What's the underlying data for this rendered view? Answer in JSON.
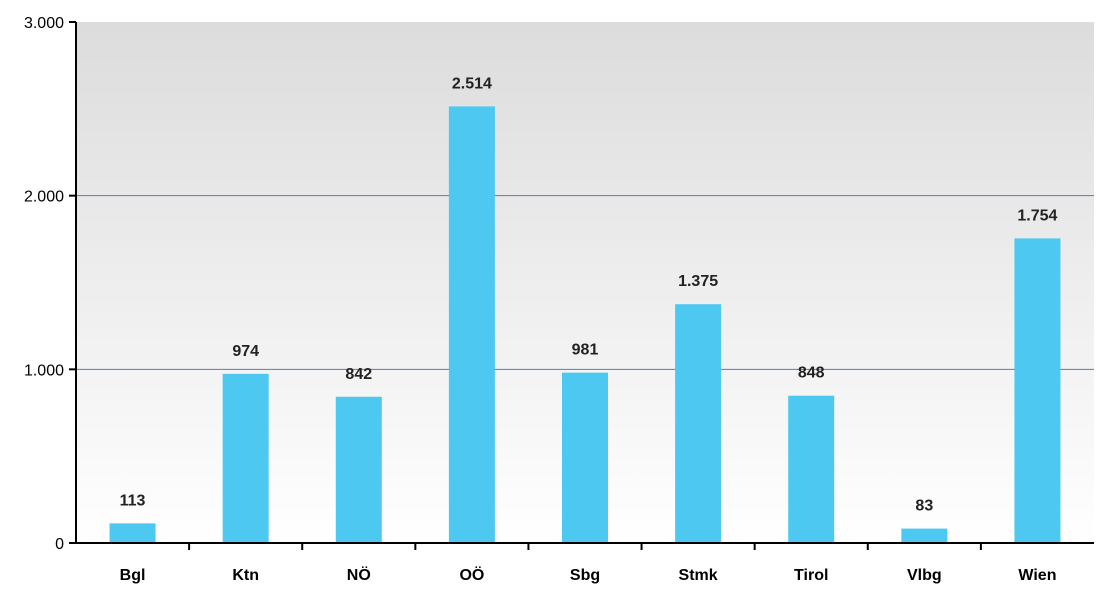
{
  "chart_data": {
    "type": "bar",
    "title": "",
    "xlabel": "",
    "ylabel": "",
    "categories": [
      "Bgl",
      "Ktn",
      "NÖ",
      "OÖ",
      "Sbg",
      "Stmk",
      "Tirol",
      "Vlbg",
      "Wien"
    ],
    "values": [
      113,
      974,
      842,
      2514,
      981,
      1375,
      848,
      83,
      1754
    ],
    "value_labels": [
      "113",
      "974",
      "842",
      "2.514",
      "981",
      "1.375",
      "848",
      "83",
      "1.754"
    ],
    "ylim": [
      0,
      3000
    ],
    "yticks": [
      0,
      1000,
      2000,
      3000
    ],
    "ytick_labels": [
      "0",
      "1.000",
      "2.000",
      "3.000"
    ],
    "grid": true,
    "legend": "none",
    "colors": {
      "bar": "#4DC8F0",
      "gridline": "#5B7BB5",
      "plot_bg_top": "#DCDCDC",
      "plot_bg_bottom": "#FFFFFF",
      "axis": "#000000"
    }
  }
}
